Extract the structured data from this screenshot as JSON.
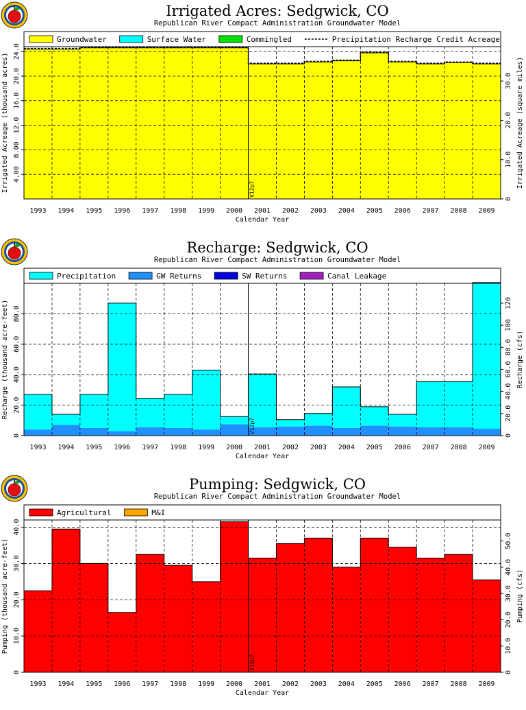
{
  "colors": {
    "groundwater": "#ffff00",
    "surface_water": "#00ffff",
    "commingled": "#00e000",
    "precipitation": "#00ffff",
    "gw_returns": "#2090ff",
    "sw_returns": "#0000e0",
    "canal_leakage": "#a020c0",
    "agricultural": "#ff0000",
    "mi": "#ffa500"
  },
  "chart_data": [
    {
      "type": "area",
      "title": "Irrigated Acres: Sedgwick, CO",
      "subtitle": "Republican River Compact Administration Groundwater Model",
      "xlabel": "Calendar Year",
      "ylabel": "Irrigated Acreage (thousand acres)",
      "y2label": "Irrigated Acreage (square miles)",
      "categories": [
        "1993",
        "1994",
        "1995",
        "1996",
        "1997",
        "1998",
        "1999",
        "2000",
        "2001",
        "2002",
        "2003",
        "2004",
        "2005",
        "2006",
        "2007",
        "2008",
        "2009"
      ],
      "ylim": [
        0,
        24.8
      ],
      "yticks": [
        "4.00",
        "8.00",
        "12.0",
        "16.0",
        "20.0",
        "24.0"
      ],
      "y2lim": [
        0,
        38.75
      ],
      "y2ticks": [
        "0",
        "10.0",
        "20.0",
        "30.0"
      ],
      "marker_label": "V12p7",
      "marker_after_index": 7,
      "legend": [
        "Groundwater",
        "Surface Water",
        "Commingled",
        "Precipitation Recharge Credit Acreage"
      ],
      "series": [
        {
          "name": "Groundwater",
          "color_key": "groundwater",
          "values": [
            24.4,
            24.4,
            24.6,
            24.6,
            24.6,
            24.6,
            24.6,
            24.6,
            22.0,
            22.0,
            22.3,
            22.5,
            23.8,
            22.3,
            22.0,
            22.2,
            22.0
          ]
        },
        {
          "name": "Surface Water",
          "color_key": "surface_water",
          "values": [
            0,
            0,
            0,
            0,
            0,
            0,
            0,
            0,
            0,
            0,
            0,
            0,
            0,
            0,
            0,
            0,
            0
          ]
        },
        {
          "name": "Commingled",
          "color_key": "commingled",
          "values": [
            0,
            0,
            0,
            0,
            0,
            0,
            0,
            0,
            0,
            0,
            0,
            0,
            0,
            0,
            0,
            0,
            0
          ]
        }
      ],
      "overlay": {
        "name": "Precipitation Recharge Credit Acreage",
        "values": [
          24.5,
          24.5,
          24.7,
          24.7,
          24.7,
          24.7,
          24.7,
          24.7,
          22.1,
          22.1,
          22.4,
          22.6,
          23.9,
          22.4,
          22.1,
          22.3,
          22.1
        ]
      }
    },
    {
      "type": "area",
      "title": "Recharge: Sedgwick, CO",
      "subtitle": "Republican River Compact Administration Groundwater Model",
      "xlabel": "Calendar Year",
      "ylabel": "Recharge (thousand acre-feet)",
      "y2label": "Recharge (cfs)",
      "categories": [
        "1993",
        "1994",
        "1995",
        "1996",
        "1997",
        "1998",
        "1999",
        "2000",
        "2001",
        "2002",
        "2003",
        "2004",
        "2005",
        "2006",
        "2007",
        "2008",
        "2009"
      ],
      "ylim": [
        0,
        100
      ],
      "yticks": [
        "0",
        "20.0",
        "40.0",
        "60.0",
        "80.0"
      ],
      "y2lim": [
        0,
        138
      ],
      "y2ticks": [
        "0",
        "20.0",
        "40.0",
        "60.0",
        "80.0",
        "100",
        "120"
      ],
      "marker_label": "V12p7",
      "marker_after_index": 7,
      "legend": [
        "Precipitation",
        "GW Returns",
        "SW Returns",
        "Canal Leakage"
      ],
      "series": [
        {
          "name": "GW Returns",
          "color_key": "gw_returns",
          "values": [
            4.0,
            7.0,
            5.0,
            3.0,
            5.5,
            5.0,
            4.0,
            7.5,
            5.5,
            6.0,
            6.5,
            5.0,
            6.5,
            6.0,
            5.5,
            5.5,
            4.5
          ]
        },
        {
          "name": "SW Returns",
          "color_key": "sw_returns",
          "values": [
            0,
            0,
            0,
            0,
            0,
            0,
            0,
            0,
            0,
            0,
            0,
            0,
            0,
            0,
            0,
            0,
            0
          ]
        },
        {
          "name": "Canal Leakage",
          "color_key": "canal_leakage",
          "values": [
            0,
            0,
            0,
            0,
            0,
            0,
            0,
            0,
            0,
            0,
            0,
            0,
            0,
            0,
            0,
            0,
            0
          ]
        },
        {
          "name": "Precipitation",
          "color_key": "precipitation",
          "values": [
            23.0,
            7.0,
            22.0,
            84.0,
            19.0,
            22.0,
            39.0,
            5.0,
            35.0,
            4.5,
            8.0,
            27.0,
            12.5,
            8.0,
            30.0,
            30.0,
            96.0
          ]
        }
      ]
    },
    {
      "type": "area",
      "title": "Pumping: Sedgwick, CO",
      "subtitle": "Republican River Compact Administration Groundwater Model",
      "xlabel": "Calendar Year",
      "ylabel": "Pumping (thousand acre-feet)",
      "y2label": "Pumping (cfs)",
      "categories": [
        "1993",
        "1994",
        "1995",
        "1996",
        "1997",
        "1998",
        "1999",
        "2000",
        "2001",
        "2002",
        "2003",
        "2004",
        "2005",
        "2006",
        "2007",
        "2008",
        "2009"
      ],
      "ylim": [
        0,
        42
      ],
      "yticks": [
        "0",
        "10.0",
        "20.0",
        "30.0",
        "40.0"
      ],
      "y2lim": [
        0,
        58
      ],
      "y2ticks": [
        "0",
        "10.0",
        "20.0",
        "30.0",
        "40.0",
        "50.0"
      ],
      "marker_label": "V12p7",
      "marker_after_index": 7,
      "legend": [
        "Agricultural",
        "M&I"
      ],
      "series": [
        {
          "name": "Agricultural",
          "color_key": "agricultural",
          "values": [
            22.5,
            39.5,
            30.0,
            16.5,
            32.5,
            29.5,
            25.0,
            41.5,
            31.5,
            35.5,
            37.0,
            29.0,
            37.0,
            34.5,
            31.5,
            32.5,
            25.5
          ]
        },
        {
          "name": "M&I",
          "color_key": "mi",
          "values": [
            0,
            0,
            0,
            0,
            0,
            0,
            0,
            0,
            0,
            0,
            0,
            0,
            0,
            0,
            0,
            0,
            0
          ]
        }
      ]
    }
  ]
}
